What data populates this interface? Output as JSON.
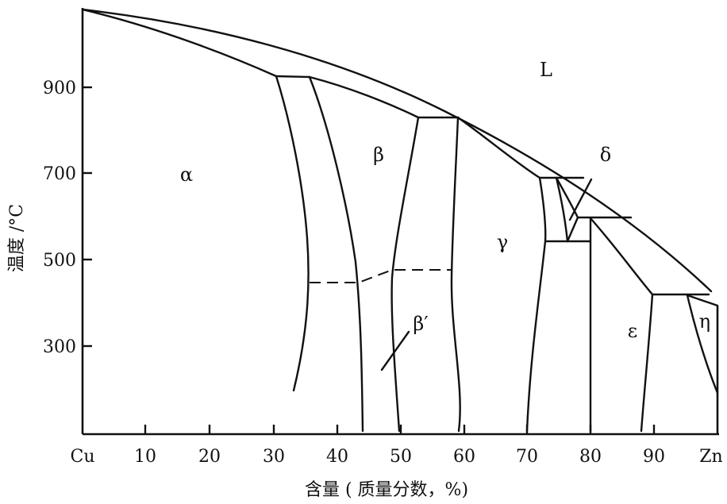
{
  "x_axis": {
    "title": "含量 ( 质量分数，%)",
    "ticks": [
      {
        "value": 0,
        "label": "Cu"
      },
      {
        "value": 10,
        "label": "10"
      },
      {
        "value": 20,
        "label": "20"
      },
      {
        "value": 30,
        "label": "30"
      },
      {
        "value": 40,
        "label": "40"
      },
      {
        "value": 50,
        "label": "50"
      },
      {
        "value": 60,
        "label": "60"
      },
      {
        "value": 70,
        "label": "70"
      },
      {
        "value": 80,
        "label": "80"
      },
      {
        "value": 90,
        "label": "90"
      },
      {
        "value": 100,
        "label": "Zn"
      }
    ]
  },
  "y_axis": {
    "title": "温度 /°C",
    "ticks": [
      {
        "value": 300,
        "label": "300"
      },
      {
        "value": 500,
        "label": "500"
      },
      {
        "value": 700,
        "label": "700"
      },
      {
        "value": 900,
        "label": "900"
      }
    ]
  },
  "phases": [
    {
      "label": "L"
    },
    {
      "label": "α"
    },
    {
      "label": "β"
    },
    {
      "label": "β′"
    },
    {
      "label": "γ"
    },
    {
      "label": "δ"
    },
    {
      "label": "ε"
    },
    {
      "label": "η"
    }
  ]
}
